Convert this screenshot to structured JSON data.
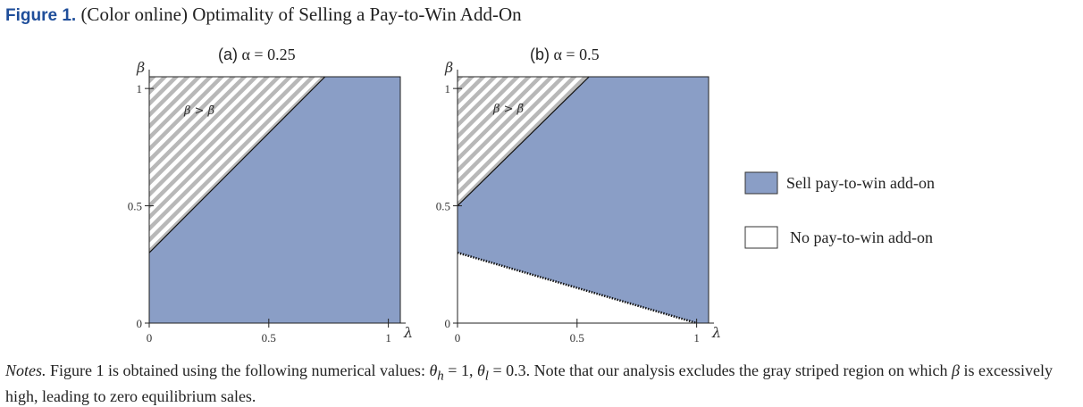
{
  "caption": {
    "figure_label": "Figure 1.",
    "title": "(Color online) Optimality of Selling a Pay-to-Win Add-On"
  },
  "colors": {
    "sell_fill": "#8a9ec6",
    "excluded_stripe": "#b8b8b8",
    "caption_blue": "#1f4e9a",
    "boundary": "#111111"
  },
  "chart_data": [
    {
      "type": "area",
      "panel_label": "(a)",
      "alpha_label": "α = 0.25",
      "xlabel": "λ",
      "ylabel": "β",
      "xlim": [
        0,
        1.05
      ],
      "ylim": [
        0,
        1.05
      ],
      "xticks": [
        "0",
        "0.5",
        "1"
      ],
      "yticks": [
        "0",
        "0.5",
        "1"
      ],
      "grid": false,
      "excluded_region_label": "β > β̄",
      "regions": {
        "excluded_upper_boundary": [
          [
            0,
            0.3
          ],
          [
            0.735,
            1.05
          ]
        ],
        "no_sell_lower_boundary": null
      }
    },
    {
      "type": "area",
      "panel_label": "(b)",
      "alpha_label": "α = 0.5",
      "xlabel": "λ",
      "ylabel": "β",
      "xlim": [
        0,
        1.05
      ],
      "ylim": [
        0,
        1.05
      ],
      "xticks": [
        "0",
        "0.5",
        "1"
      ],
      "yticks": [
        "0",
        "0.5",
        "1"
      ],
      "grid": false,
      "excluded_region_label": "β > β̄",
      "regions": {
        "excluded_upper_boundary": [
          [
            0,
            0.5
          ],
          [
            0.55,
            1.05
          ]
        ],
        "no_sell_lower_boundary": [
          [
            0,
            0.3
          ],
          [
            1.0,
            0.0
          ]
        ]
      }
    }
  ],
  "legend": {
    "items": [
      {
        "label": "Sell pay-to-win add-on",
        "color": "#8a9ec6"
      },
      {
        "label": "No pay-to-win add-on",
        "color": "#ffffff"
      }
    ]
  },
  "notes": {
    "lead": "Notes.",
    "text1": " Figure 1 is obtained using the following numerical values: ",
    "theta_h": "θ",
    "sub_h": "h",
    "eq1": " = 1, ",
    "theta_l": "θ",
    "sub_l": "l",
    "eq2": " = 0.3. Note that our analysis excludes the gray striped region on which ",
    "beta": "β",
    "text2": " is excessively high, leading to zero equilibrium sales."
  }
}
